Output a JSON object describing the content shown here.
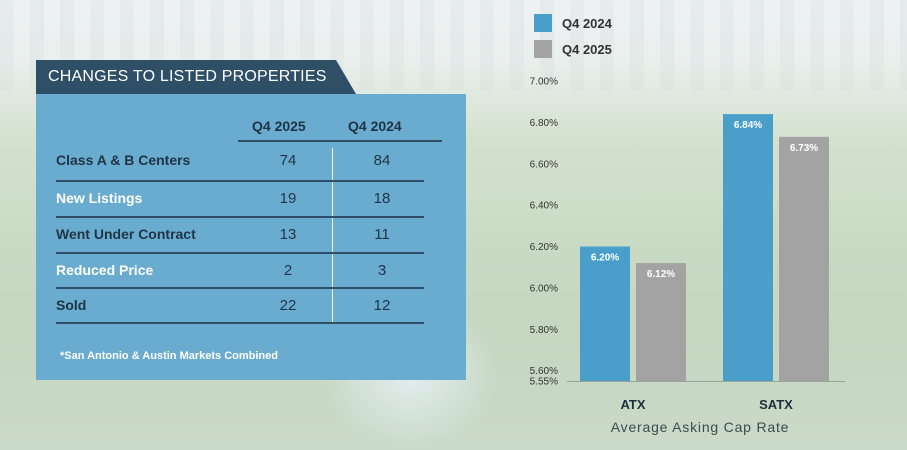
{
  "table": {
    "title": "CHANGES TO LISTED PROPERTIES",
    "columns": [
      "Q4 2025",
      "Q4 2024"
    ],
    "rows": [
      {
        "label": "Class A & B Centers",
        "q4_2025": "74",
        "q4_2024": "84"
      },
      {
        "label": "New Listings",
        "q4_2025": "19",
        "q4_2024": "18"
      },
      {
        "label": "Went Under Contract",
        "q4_2025": "13",
        "q4_2024": "11"
      },
      {
        "label": "Reduced Price",
        "q4_2025": "2",
        "q4_2024": "3"
      },
      {
        "label": "Sold",
        "q4_2025": "22",
        "q4_2024": "12"
      }
    ],
    "footnote": "*San Antonio & Austin Markets Combined"
  },
  "colors": {
    "q4_2024": "#4a9fca",
    "q4_2025": "#a3a3a3",
    "panel": "#6aaccf",
    "title_tab": "#2e4f66"
  },
  "chart_data": {
    "type": "bar",
    "categories": [
      "ATX",
      "SATX"
    ],
    "series": [
      {
        "name": "Q4 2024",
        "values": [
          6.2,
          6.84
        ],
        "labels": [
          "6.20%",
          "6.84%"
        ]
      },
      {
        "name": "Q4 2025",
        "values": [
          6.12,
          6.73
        ],
        "labels": [
          "6.12%",
          "6.73%"
        ]
      }
    ],
    "xlabel": "Average Asking Cap Rate",
    "ylim": [
      5.55,
      7.0
    ],
    "yticks": [
      5.55,
      5.6,
      5.8,
      6.0,
      6.2,
      6.4,
      6.6,
      6.8,
      7.0
    ],
    "ytick_labels": [
      "5.55%",
      "5.60%",
      "5.80%",
      "6.00%",
      "6.20%",
      "6.40%",
      "6.60%",
      "6.80%",
      "7.00%"
    ],
    "legend_position": "top-left",
    "grid": false
  }
}
